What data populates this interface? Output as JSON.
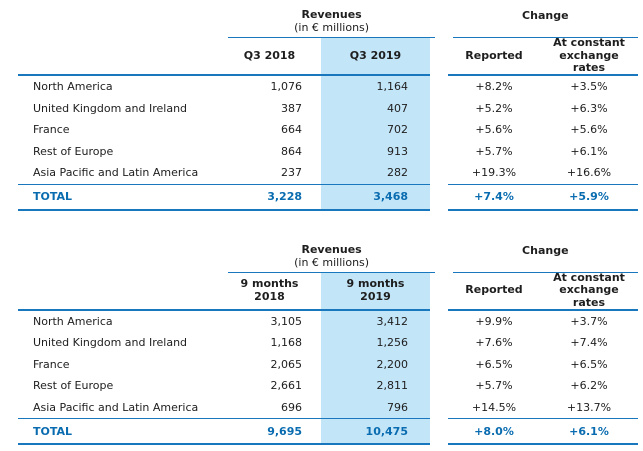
{
  "colors": {
    "accent": "#1877BD",
    "highlight": "#C3E5F8",
    "total_text": "#0A6CB0"
  },
  "tables": [
    {
      "revenues_title": "Revenues",
      "revenues_subtitle": "(in € millions)",
      "change_title": "Change",
      "col_period_prev": "Q3 2018",
      "col_period_curr": "Q3 2019",
      "col_reported": "Reported",
      "col_constant": "At constant\nexchange\nrates",
      "rows": [
        {
          "label": "North America",
          "prev": "1,076",
          "curr": "1,164",
          "reported": "+8.2%",
          "constant": "+3.5%"
        },
        {
          "label": "United Kingdom and Ireland",
          "prev": "387",
          "curr": "407",
          "reported": "+5.2%",
          "constant": "+6.3%"
        },
        {
          "label": "France",
          "prev": "664",
          "curr": "702",
          "reported": "+5.6%",
          "constant": "+5.6%"
        },
        {
          "label": "Rest of Europe",
          "prev": "864",
          "curr": "913",
          "reported": "+5.7%",
          "constant": "+6.1%"
        },
        {
          "label": "Asia Pacific and Latin America",
          "prev": "237",
          "curr": "282",
          "reported": "+19.3%",
          "constant": "+16.6%"
        }
      ],
      "total": {
        "label": "TOTAL",
        "prev": "3,228",
        "curr": "3,468",
        "reported": "+7.4%",
        "constant": "+5.9%"
      }
    },
    {
      "revenues_title": "Revenues",
      "revenues_subtitle": "(in € millions)",
      "change_title": "Change",
      "col_period_prev": "9 months\n2018",
      "col_period_curr": "9 months\n2019",
      "col_reported": "Reported",
      "col_constant": "At constant\nexchange\nrates",
      "rows": [
        {
          "label": "North America",
          "prev": "3,105",
          "curr": "3,412",
          "reported": "+9.9%",
          "constant": "+3.7%"
        },
        {
          "label": "United Kingdom and Ireland",
          "prev": "1,168",
          "curr": "1,256",
          "reported": "+7.6%",
          "constant": "+7.4%"
        },
        {
          "label": "France",
          "prev": "2,065",
          "curr": "2,200",
          "reported": "+6.5%",
          "constant": "+6.5%"
        },
        {
          "label": "Rest of Europe",
          "prev": "2,661",
          "curr": "2,811",
          "reported": "+5.7%",
          "constant": "+6.2%"
        },
        {
          "label": "Asia Pacific and Latin America",
          "prev": "696",
          "curr": "796",
          "reported": "+14.5%",
          "constant": "+13.7%"
        }
      ],
      "total": {
        "label": "TOTAL",
        "prev": "9,695",
        "curr": "10,475",
        "reported": "+8.0%",
        "constant": "+6.1%"
      }
    }
  ]
}
